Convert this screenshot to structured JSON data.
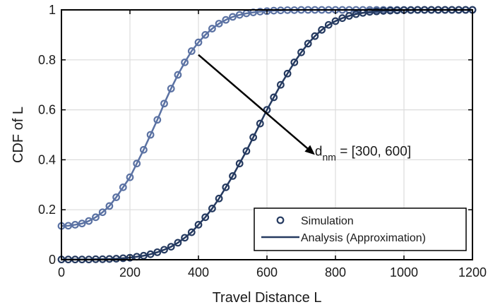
{
  "chart_data": {
    "type": "line",
    "xlabel": "Travel Distance L",
    "ylabel": "CDF of L",
    "xlim": [
      0,
      1200
    ],
    "ylim": [
      0,
      1
    ],
    "grid": true,
    "xticks": [
      0,
      200,
      400,
      600,
      800,
      1000,
      1200
    ],
    "yticks": [
      0,
      0.2,
      0.4,
      0.6,
      0.8,
      1
    ],
    "ytick_labels": [
      "0",
      "0.2",
      "0.4",
      "0.6",
      "0.8",
      "1"
    ],
    "legend": {
      "placement": "bottom-right",
      "entries": [
        {
          "label": "Simulation",
          "marker": "circle"
        },
        {
          "label": "Analysis (Approximation)",
          "marker": "line"
        }
      ]
    },
    "annotation": {
      "main": "d",
      "subscript": "nm",
      "rest": " = [300, 600]",
      "arrow_from": [
        400,
        0.82
      ],
      "arrow_to": [
        740,
        0.42
      ]
    },
    "series": [
      {
        "key": "d300",
        "color": "#5b72a3",
        "x": [
          0,
          20,
          40,
          60,
          80,
          100,
          120,
          140,
          160,
          180,
          200,
          220,
          240,
          260,
          280,
          300,
          320,
          340,
          360,
          380,
          400,
          420,
          440,
          460,
          480,
          500,
          520,
          540,
          560,
          580,
          600,
          620,
          640,
          660,
          680,
          700,
          720,
          740,
          760,
          780,
          800,
          820,
          840,
          860,
          880,
          900,
          920,
          940,
          960,
          980,
          1000,
          1020,
          1040,
          1060,
          1080,
          1100,
          1120,
          1140,
          1160,
          1180,
          1200
        ],
        "y_simulation": [
          0.135,
          0.136,
          0.14,
          0.145,
          0.155,
          0.17,
          0.19,
          0.215,
          0.25,
          0.29,
          0.33,
          0.385,
          0.44,
          0.5,
          0.56,
          0.625,
          0.685,
          0.74,
          0.79,
          0.835,
          0.87,
          0.9,
          0.925,
          0.945,
          0.96,
          0.972,
          0.98,
          0.986,
          0.99,
          0.993,
          0.995,
          0.997,
          0.998,
          0.999,
          0.999,
          1,
          1,
          1,
          1,
          1,
          1,
          1,
          1,
          1,
          1,
          1,
          1,
          1,
          1,
          1,
          1,
          1,
          1,
          1,
          1,
          1,
          1,
          1,
          1,
          1,
          1
        ],
        "y_analysis": [
          0.135,
          0.136,
          0.14,
          0.145,
          0.155,
          0.17,
          0.19,
          0.215,
          0.25,
          0.29,
          0.33,
          0.385,
          0.44,
          0.5,
          0.56,
          0.625,
          0.685,
          0.74,
          0.79,
          0.835,
          0.87,
          0.9,
          0.925,
          0.945,
          0.96,
          0.972,
          0.98,
          0.986,
          0.99,
          0.993,
          0.995,
          0.997,
          0.998,
          0.999,
          0.999,
          1,
          1,
          1,
          1,
          1,
          1,
          1,
          1,
          1,
          1,
          1,
          1,
          1,
          1,
          1,
          1,
          1,
          1,
          1,
          1,
          1,
          1,
          1,
          1,
          1,
          1
        ]
      },
      {
        "key": "d600",
        "color": "#253a60",
        "x": [
          0,
          20,
          40,
          60,
          80,
          100,
          120,
          140,
          160,
          180,
          200,
          220,
          240,
          260,
          280,
          300,
          320,
          340,
          360,
          380,
          400,
          420,
          440,
          460,
          480,
          500,
          520,
          540,
          560,
          580,
          600,
          620,
          640,
          660,
          680,
          700,
          720,
          740,
          760,
          780,
          800,
          820,
          840,
          860,
          880,
          900,
          920,
          940,
          960,
          980,
          1000,
          1020,
          1040,
          1060,
          1080,
          1100,
          1120,
          1140,
          1160,
          1180,
          1200
        ],
        "y_simulation": [
          0.001,
          0.001,
          0.001,
          0.001,
          0.001,
          0.002,
          0.002,
          0.003,
          0.004,
          0.006,
          0.008,
          0.012,
          0.016,
          0.022,
          0.03,
          0.04,
          0.052,
          0.068,
          0.088,
          0.11,
          0.14,
          0.17,
          0.205,
          0.245,
          0.29,
          0.335,
          0.385,
          0.435,
          0.49,
          0.545,
          0.6,
          0.65,
          0.7,
          0.745,
          0.79,
          0.83,
          0.865,
          0.895,
          0.92,
          0.94,
          0.955,
          0.967,
          0.976,
          0.983,
          0.988,
          0.992,
          0.994,
          0.996,
          0.997,
          0.998,
          0.999,
          0.999,
          1,
          1,
          1,
          1,
          1,
          1,
          1,
          1,
          1
        ],
        "y_analysis": [
          0.001,
          0.001,
          0.001,
          0.001,
          0.001,
          0.002,
          0.002,
          0.003,
          0.004,
          0.006,
          0.008,
          0.012,
          0.016,
          0.022,
          0.03,
          0.04,
          0.052,
          0.068,
          0.088,
          0.11,
          0.14,
          0.17,
          0.205,
          0.245,
          0.29,
          0.335,
          0.385,
          0.435,
          0.49,
          0.545,
          0.6,
          0.65,
          0.7,
          0.745,
          0.79,
          0.83,
          0.865,
          0.895,
          0.92,
          0.94,
          0.955,
          0.967,
          0.976,
          0.983,
          0.988,
          0.992,
          0.994,
          0.996,
          0.997,
          0.998,
          0.999,
          0.999,
          1,
          1,
          1,
          1,
          1,
          1,
          1,
          1,
          1
        ]
      }
    ]
  }
}
